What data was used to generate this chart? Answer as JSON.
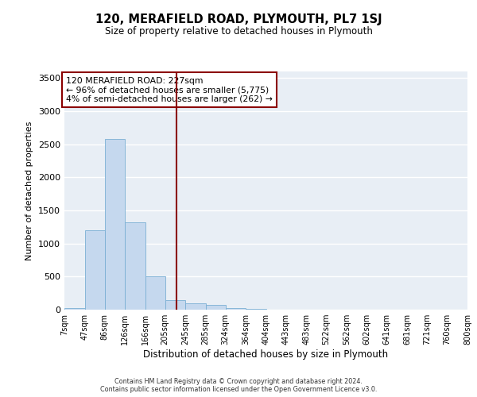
{
  "title": "120, MERAFIELD ROAD, PLYMOUTH, PL7 1SJ",
  "subtitle": "Size of property relative to detached houses in Plymouth",
  "xlabel": "Distribution of detached houses by size in Plymouth",
  "ylabel": "Number of detached properties",
  "bar_color": "#c5d8ee",
  "bar_edge_color": "#7aafd4",
  "background_color": "#e8eef5",
  "vline_x": 227,
  "vline_color": "#8b0000",
  "annotation_text": "120 MERAFIELD ROAD: 227sqm\n← 96% of detached houses are smaller (5,775)\n4% of semi-detached houses are larger (262) →",
  "annotation_box_color": "#8b0000",
  "yticks": [
    0,
    500,
    1000,
    1500,
    2000,
    2500,
    3000,
    3500
  ],
  "bin_edges": [
    7,
    47,
    86,
    126,
    166,
    205,
    245,
    285,
    324,
    364,
    404,
    443,
    483,
    522,
    562,
    602,
    641,
    681,
    721,
    760,
    800
  ],
  "bin_labels": [
    "7sqm",
    "47sqm",
    "86sqm",
    "126sqm",
    "166sqm",
    "205sqm",
    "245sqm",
    "285sqm",
    "324sqm",
    "364sqm",
    "404sqm",
    "443sqm",
    "483sqm",
    "522sqm",
    "562sqm",
    "602sqm",
    "641sqm",
    "681sqm",
    "721sqm",
    "760sqm",
    "800sqm"
  ],
  "bar_heights": [
    30,
    1200,
    2575,
    1325,
    500,
    150,
    100,
    75,
    30,
    8,
    5,
    5,
    3,
    2,
    1,
    1,
    0,
    0,
    0,
    0
  ],
  "footer_line1": "Contains HM Land Registry data © Crown copyright and database right 2024.",
  "footer_line2": "Contains public sector information licensed under the Open Government Licence v3.0."
}
